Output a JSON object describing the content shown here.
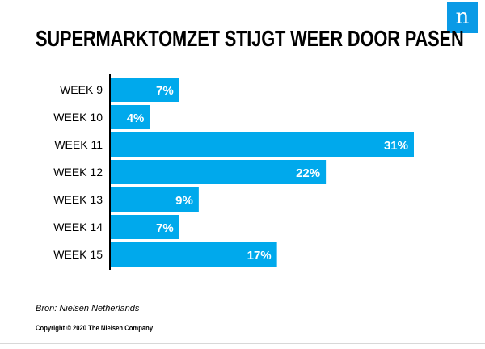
{
  "logo": {
    "glyph": "n"
  },
  "title": "SUPERMARKTOMZET STIJGT WEER DOOR PASEN",
  "source": "Bron: Nielsen Netherlands",
  "copyright": "Copyright © 2020 The Nielsen Company",
  "colors": {
    "bar": "#00a9ec",
    "bar_label": "#ffffff",
    "axis": "#000000",
    "logo": "#0a9ae6"
  },
  "chart_data": {
    "type": "bar",
    "orientation": "horizontal",
    "categories": [
      "WEEK 9",
      "WEEK 10",
      "WEEK 11",
      "WEEK 12",
      "WEEK 13",
      "WEEK 14",
      "WEEK 15"
    ],
    "values": [
      7,
      4,
      31,
      22,
      9,
      7,
      17
    ],
    "value_labels": [
      "7%",
      "4%",
      "31%",
      "22%",
      "9%",
      "7%",
      "17%"
    ],
    "unit": "%",
    "xlim": [
      0,
      31
    ],
    "grid": false,
    "legend": "none"
  }
}
